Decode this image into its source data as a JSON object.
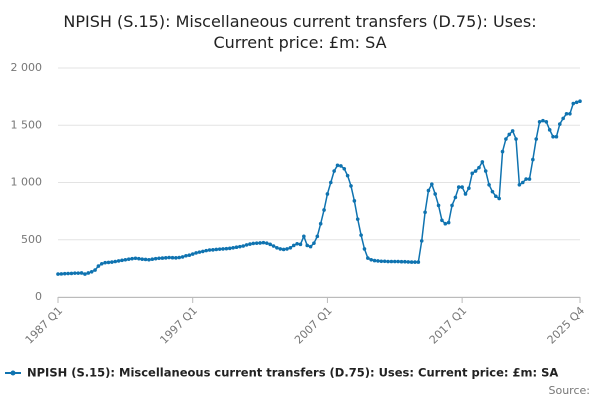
{
  "chart_data": {
    "type": "line",
    "title": "NPISH (S.15): Miscellaneous current transfers (D.75): Uses: Current price: £m: SA",
    "source": "Source:",
    "categories": [
      "1987 Q1",
      null,
      null,
      null,
      null,
      null,
      null,
      null,
      null,
      null,
      null,
      null,
      null,
      null,
      null,
      null,
      null,
      null,
      null,
      null,
      null,
      null,
      null,
      null,
      null,
      null,
      null,
      null,
      null,
      null,
      null,
      null,
      null,
      null,
      null,
      null,
      null,
      null,
      null,
      null,
      "1997 Q1",
      null,
      null,
      null,
      null,
      null,
      null,
      null,
      null,
      null,
      null,
      null,
      null,
      null,
      null,
      null,
      null,
      null,
      null,
      null,
      null,
      null,
      null,
      null,
      null,
      null,
      null,
      null,
      null,
      null,
      null,
      null,
      null,
      null,
      null,
      null,
      null,
      null,
      null,
      null,
      "2007 Q1",
      null,
      null,
      null,
      null,
      null,
      null,
      null,
      null,
      null,
      null,
      null,
      null,
      null,
      null,
      null,
      null,
      null,
      null,
      null,
      null,
      null,
      null,
      null,
      null,
      null,
      null,
      null,
      null,
      null,
      null,
      null,
      null,
      null,
      null,
      null,
      null,
      null,
      null,
      null,
      "2017 Q1",
      null,
      null,
      null,
      null,
      null,
      null,
      null,
      null,
      null,
      null,
      null,
      null,
      null,
      null,
      null,
      null,
      null,
      null,
      null,
      null,
      null,
      null,
      null,
      null,
      null,
      null,
      null,
      null,
      null,
      null,
      null,
      null,
      null,
      null,
      "2025 Q4"
    ],
    "series": [
      {
        "name": "NPISH (S.15): Miscellaneous current transfers (D.75): Uses: Current price: £m: SA",
        "color": "#0f73b0",
        "values": [
          200,
          202,
          204,
          205,
          206,
          208,
          208,
          210,
          200,
          210,
          220,
          235,
          270,
          290,
          300,
          302,
          305,
          310,
          315,
          320,
          325,
          330,
          335,
          338,
          335,
          330,
          328,
          325,
          330,
          335,
          338,
          340,
          342,
          345,
          343,
          342,
          345,
          350,
          360,
          365,
          375,
          385,
          392,
          398,
          405,
          410,
          412,
          415,
          418,
          420,
          422,
          425,
          430,
          435,
          440,
          445,
          455,
          462,
          468,
          470,
          472,
          475,
          470,
          460,
          445,
          430,
          420,
          415,
          420,
          430,
          450,
          465,
          460,
          530,
          450,
          440,
          470,
          530,
          640,
          760,
          900,
          1000,
          1100,
          1150,
          1145,
          1120,
          1060,
          970,
          840,
          680,
          540,
          420,
          340,
          325,
          318,
          315,
          312,
          312,
          310,
          310,
          310,
          310,
          308,
          308,
          306,
          305,
          305,
          305,
          490,
          740,
          930,
          985,
          900,
          800,
          670,
          640,
          650,
          800,
          870,
          960,
          960,
          900,
          950,
          1080,
          1100,
          1130,
          1180,
          1100,
          980,
          920,
          880,
          860,
          1270,
          1380,
          1420,
          1450,
          1380,
          980,
          1000,
          1030,
          1030,
          1200,
          1380,
          1530,
          1540,
          1530,
          1460,
          1400,
          1400,
          1510,
          1560,
          1600,
          1600,
          1690,
          1700,
          1710
        ]
      }
    ],
    "ylim": [
      0,
      2000
    ],
    "yticks": [
      0,
      500,
      {
        "value": 1000,
        "label": "1 000"
      },
      {
        "value": 1500,
        "label": "1 500"
      },
      {
        "value": 2000,
        "label": "2 000"
      }
    ],
    "grid": true
  }
}
